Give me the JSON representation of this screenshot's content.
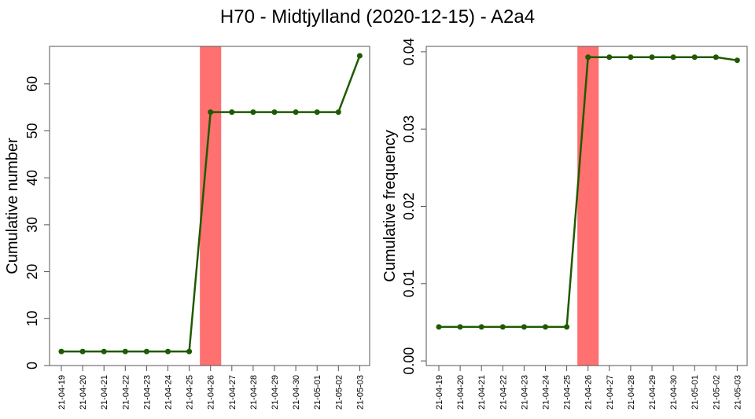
{
  "title": "H70 - Midtjylland (2020-12-15) - A2a4",
  "colors": {
    "line": "#1f5a00",
    "point": "#1f5a00",
    "highlight": "#ff7070"
  },
  "chart_data": [
    {
      "type": "line",
      "ylabel": "Cumulative number",
      "categories": [
        "21-04-19",
        "21-04-20",
        "21-04-21",
        "21-04-22",
        "21-04-23",
        "21-04-24",
        "21-04-25",
        "21-04-26",
        "21-04-27",
        "21-04-28",
        "21-04-29",
        "21-04-30",
        "21-05-01",
        "21-05-02",
        "21-05-03"
      ],
      "values": [
        3,
        3,
        3,
        3,
        3,
        3,
        3,
        54,
        54,
        54,
        54,
        54,
        54,
        54,
        66
      ],
      "ylim": [
        0,
        68
      ],
      "yticks": [
        0,
        10,
        20,
        30,
        40,
        50,
        60
      ],
      "ytick_labels": [
        "0",
        "10",
        "20",
        "30",
        "40",
        "50",
        "60"
      ],
      "highlight_category": "21-04-26"
    },
    {
      "type": "line",
      "ylabel": "Cumulative frequency",
      "categories": [
        "21-04-19",
        "21-04-20",
        "21-04-21",
        "21-04-22",
        "21-04-23",
        "21-04-24",
        "21-04-25",
        "21-04-26",
        "21-04-27",
        "21-04-28",
        "21-04-29",
        "21-04-30",
        "21-05-01",
        "21-05-02",
        "21-05-03"
      ],
      "values": [
        0.0044,
        0.0044,
        0.0044,
        0.0044,
        0.0044,
        0.0044,
        0.0044,
        0.0393,
        0.0393,
        0.0393,
        0.0393,
        0.0393,
        0.0393,
        0.0393,
        0.0389
      ],
      "ylim": [
        -0.0006,
        0.0407
      ],
      "yticks": [
        0,
        0.01,
        0.02,
        0.03,
        0.04
      ],
      "ytick_labels": [
        "0.00",
        "0.01",
        "0.02",
        "0.03",
        "0.04"
      ],
      "highlight_category": "21-04-26"
    }
  ]
}
